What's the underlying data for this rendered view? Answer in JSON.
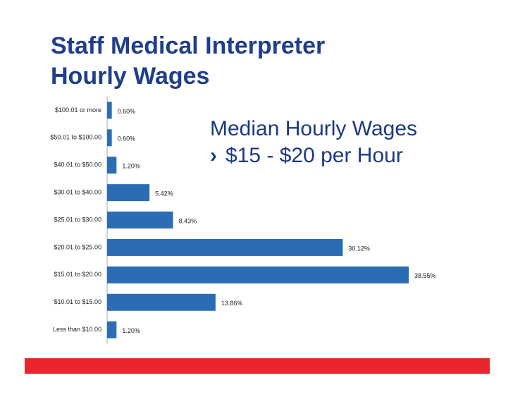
{
  "title_lines": [
    "Staff Medical Interpreter",
    "Hourly Wages"
  ],
  "text_box": {
    "heading": "Median Hourly Wages",
    "bullet_marker": "›",
    "bullet": "$15 - $20 per Hour"
  },
  "chart_data": {
    "type": "bar",
    "orientation": "horizontal",
    "categories": [
      "$100.01 or more",
      "$50.01 to $100.00",
      "$40.01 to $50.00",
      "$30.01 to $40.00",
      "$25.01 to $30.00",
      "$20.01 to $25.00",
      "$15.01 to $20.00",
      "$10.01 to $15.00",
      "Less than $10.00"
    ],
    "values": [
      0.6,
      0.6,
      1.2,
      5.42,
      8.43,
      30.12,
      38.55,
      13.86,
      1.2
    ],
    "value_labels": [
      "0.60%",
      "0.60%",
      "1.20%",
      "5.42%",
      "8.43%",
      "30.12%",
      "38.55%",
      "13.86%",
      "1.20%"
    ],
    "color": "#2a6db5"
  }
}
